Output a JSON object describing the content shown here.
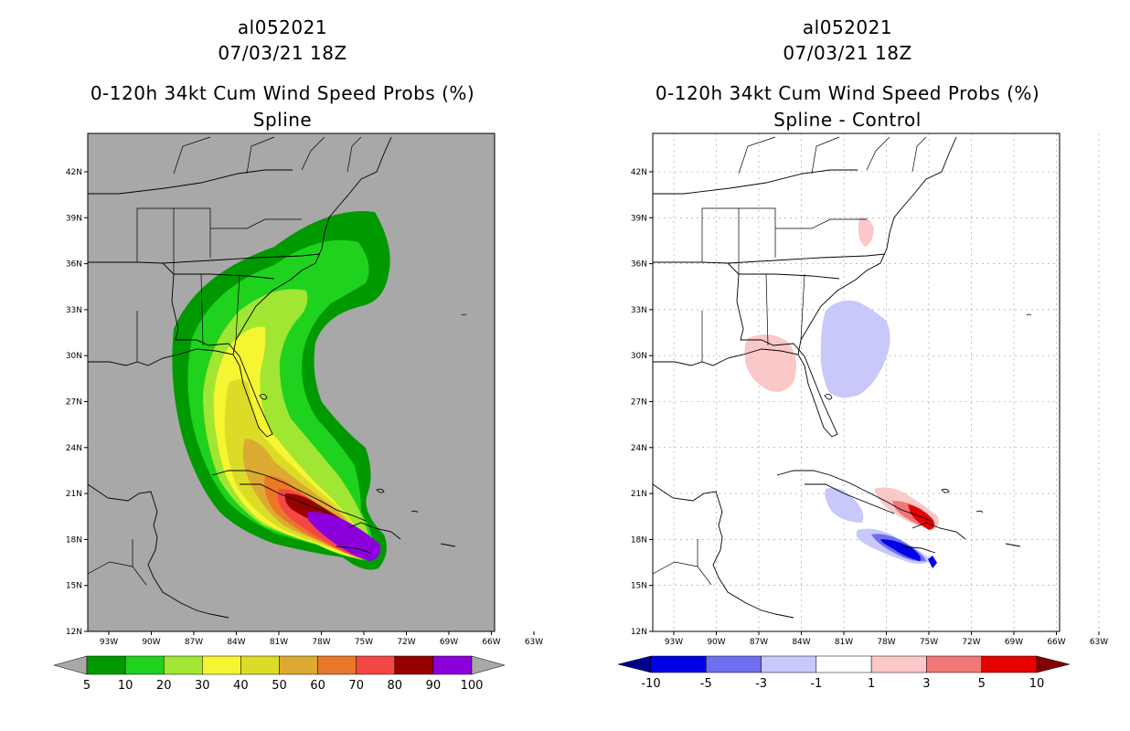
{
  "panels": [
    {
      "storm_id": "al052021",
      "datetime": "07/03/21 18Z",
      "product": "0-120h 34kt Cum Wind Speed Probs (%)",
      "method": "Spline",
      "background": "#a8a8a8",
      "colorbar": {
        "labels": [
          "5",
          "10",
          "20",
          "30",
          "40",
          "50",
          "60",
          "70",
          "80",
          "90",
          "100"
        ],
        "colors": [
          "#009a00",
          "#1ed21e",
          "#a0e632",
          "#f5f532",
          "#dcdc28",
          "#dcaa32",
          "#ea7828",
          "#f54646",
          "#960000",
          "#8c00dc"
        ],
        "end_low": "#a8a8a8",
        "end_high": "#a8a8a8"
      }
    },
    {
      "storm_id": "al052021",
      "datetime": "07/03/21 18Z",
      "product": "0-120h 34kt Cum Wind Speed Probs (%)",
      "method": "Spline - Control",
      "background": "#ffffff",
      "colorbar": {
        "labels": [
          "-10",
          "-5",
          "-3",
          "-1",
          "1",
          "3",
          "5",
          "10"
        ],
        "colors": [
          "#0000e6",
          "#6e6ef0",
          "#c8c8fa",
          "#ffffff",
          "#fac8c8",
          "#f07878",
          "#e60000"
        ],
        "end_low": "#00008c",
        "end_high": "#820000"
      }
    }
  ],
  "axes": {
    "lat_labels": [
      "42N",
      "39N",
      "36N",
      "33N",
      "30N",
      "27N",
      "24N",
      "21N",
      "18N",
      "15N",
      "12N"
    ],
    "lon_labels": [
      "93W",
      "90W",
      "87W",
      "84W",
      "81W",
      "78W",
      "75W",
      "72W",
      "69W",
      "66W",
      "63W"
    ]
  }
}
